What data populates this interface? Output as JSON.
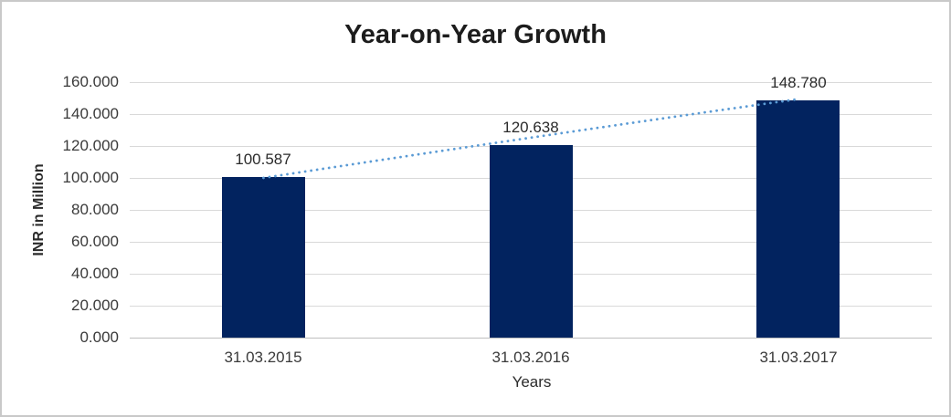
{
  "window": {
    "background": "#ffffff",
    "border_color": "#c9c9c9"
  },
  "chart_data": {
    "type": "bar",
    "title": "Year-on-Year Growth",
    "xlabel": "Years",
    "ylabel": "INR in Million",
    "categories": [
      "31.03.2015",
      "31.03.2016",
      "31.03.2017"
    ],
    "values": [
      100.587,
      120.638,
      148.78
    ],
    "data_labels": [
      "100.587",
      "120.638",
      "148.780"
    ],
    "y_tick_values": [
      0,
      20,
      40,
      60,
      80,
      100,
      120,
      140,
      160
    ],
    "y_tick_labels": [
      "0.000",
      "20.000",
      "40.000",
      "60.000",
      "80.000",
      "100.000",
      "120.000",
      "140.000",
      "160.000"
    ],
    "ylim": [
      0,
      160
    ],
    "grid": true,
    "legend": "none",
    "series_name": "INR in Million",
    "colors": {
      "bar": "#02235f",
      "trendline": "#5b9bd5",
      "gridline": "#d9d9d9",
      "axis_line": "#bfbfbf",
      "title_text": "#1c1c1c",
      "tick_text": "#3a3a3a"
    },
    "trendline": {
      "style": "dotted",
      "color": "#5b9bd5"
    }
  }
}
